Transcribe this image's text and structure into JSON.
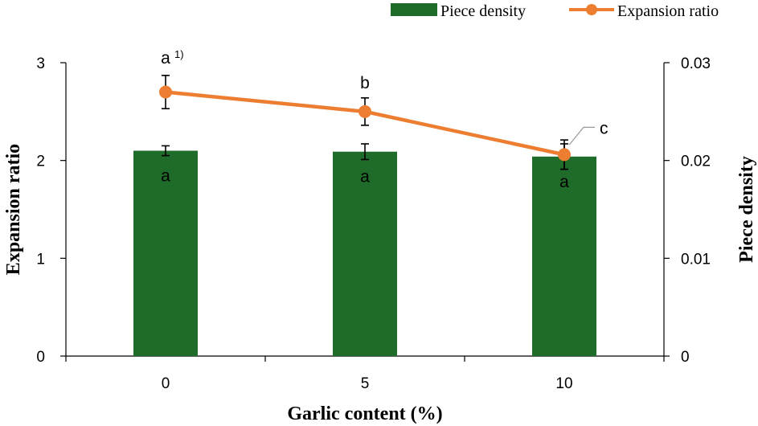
{
  "chart_data": {
    "type": "bar+line",
    "categories": [
      "0",
      "5",
      "10"
    ],
    "xlabel": "Garlic content (%)",
    "ylabel_left": "Expansion ratio",
    "ylabel_right": "Piece density",
    "ylim_left": [
      0,
      3
    ],
    "ylim_right": [
      0,
      0.03
    ],
    "yticks_left": [
      "0",
      "1",
      "2",
      "3"
    ],
    "yticks_right": [
      "0",
      "0.01",
      "0.02",
      "0.03"
    ],
    "legend_position": "top-right",
    "series": [
      {
        "name": "Piece density",
        "kind": "bar",
        "axis": "right",
        "color": "#1e6b2a",
        "values": [
          0.021,
          0.0209,
          0.0204
        ],
        "error": [
          0.0005,
          0.0008,
          0.0013
        ],
        "labels": [
          "a",
          "a",
          "a"
        ]
      },
      {
        "name": "Expansion ratio",
        "kind": "line",
        "axis": "left",
        "color": "#ed7d31",
        "values": [
          2.7,
          2.5,
          2.06
        ],
        "error": [
          0.17,
          0.14,
          0.15
        ],
        "labels": [
          "a",
          "b",
          "c"
        ]
      }
    ],
    "footnote_marker": "1)"
  }
}
